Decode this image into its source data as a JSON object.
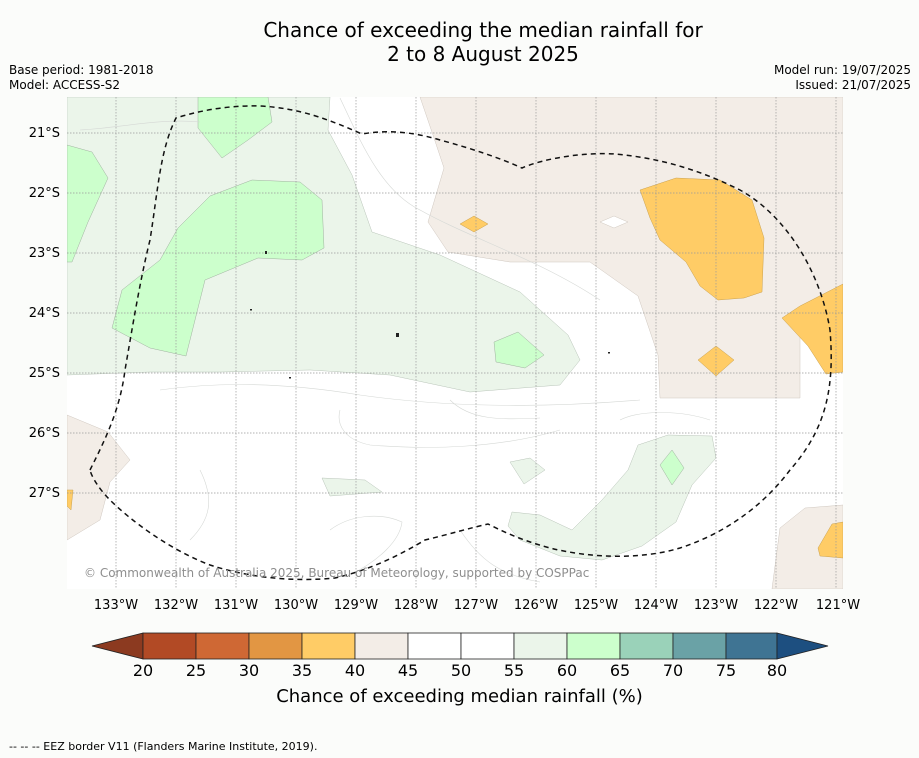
{
  "title": {
    "line1": "Chance of exceeding the median rainfall for",
    "line2": "2 to 8 August 2025"
  },
  "meta_left": {
    "base_period": "Base period: 1981-2018",
    "model": "Model: ACCESS-S2"
  },
  "meta_right": {
    "model_run": "Model run: 19/07/2025",
    "issued": "Issued: 21/07/2025"
  },
  "map": {
    "latitude_labels": [
      "21°S",
      "22°S",
      "23°S",
      "24°S",
      "25°S",
      "26°S",
      "27°S"
    ],
    "longitude_labels": [
      "133°W",
      "132°W",
      "131°W",
      "130°W",
      "129°W",
      "128°W",
      "127°W",
      "126°W",
      "125°W",
      "124°W",
      "123°W",
      "122°W",
      "121°W"
    ],
    "copyright": "© Commonwealth of Australia 2025, Bureau of Meteorology, supported by COSPPac",
    "colors": {
      "35-40": "#ffcc66",
      "40-45": "#f3ede7",
      "45-55": "#ffffff",
      "55-60": "#ebf5ea",
      "60-65": "#ccffcc"
    }
  },
  "colorbar": {
    "ticks": [
      "20",
      "25",
      "30",
      "35",
      "40",
      "45",
      "50",
      "55",
      "60",
      "65",
      "70",
      "75",
      "80"
    ],
    "label": "Chance of exceeding median rainfall (%)",
    "under_color": "#8c3a20",
    "over_color": "#1d4f80",
    "bin_colors": [
      "#b24a25",
      "#cf6834",
      "#e29643",
      "#ffcc66",
      "#f3ede7",
      "#ffffff",
      "#ffffff",
      "#ebf5ea",
      "#ccffcc",
      "#9ad2b9",
      "#6aa2a6",
      "#3f7493"
    ]
  },
  "footer": "-- -- -- EEZ border V11 (Flanders Marine Institute, 2019)."
}
